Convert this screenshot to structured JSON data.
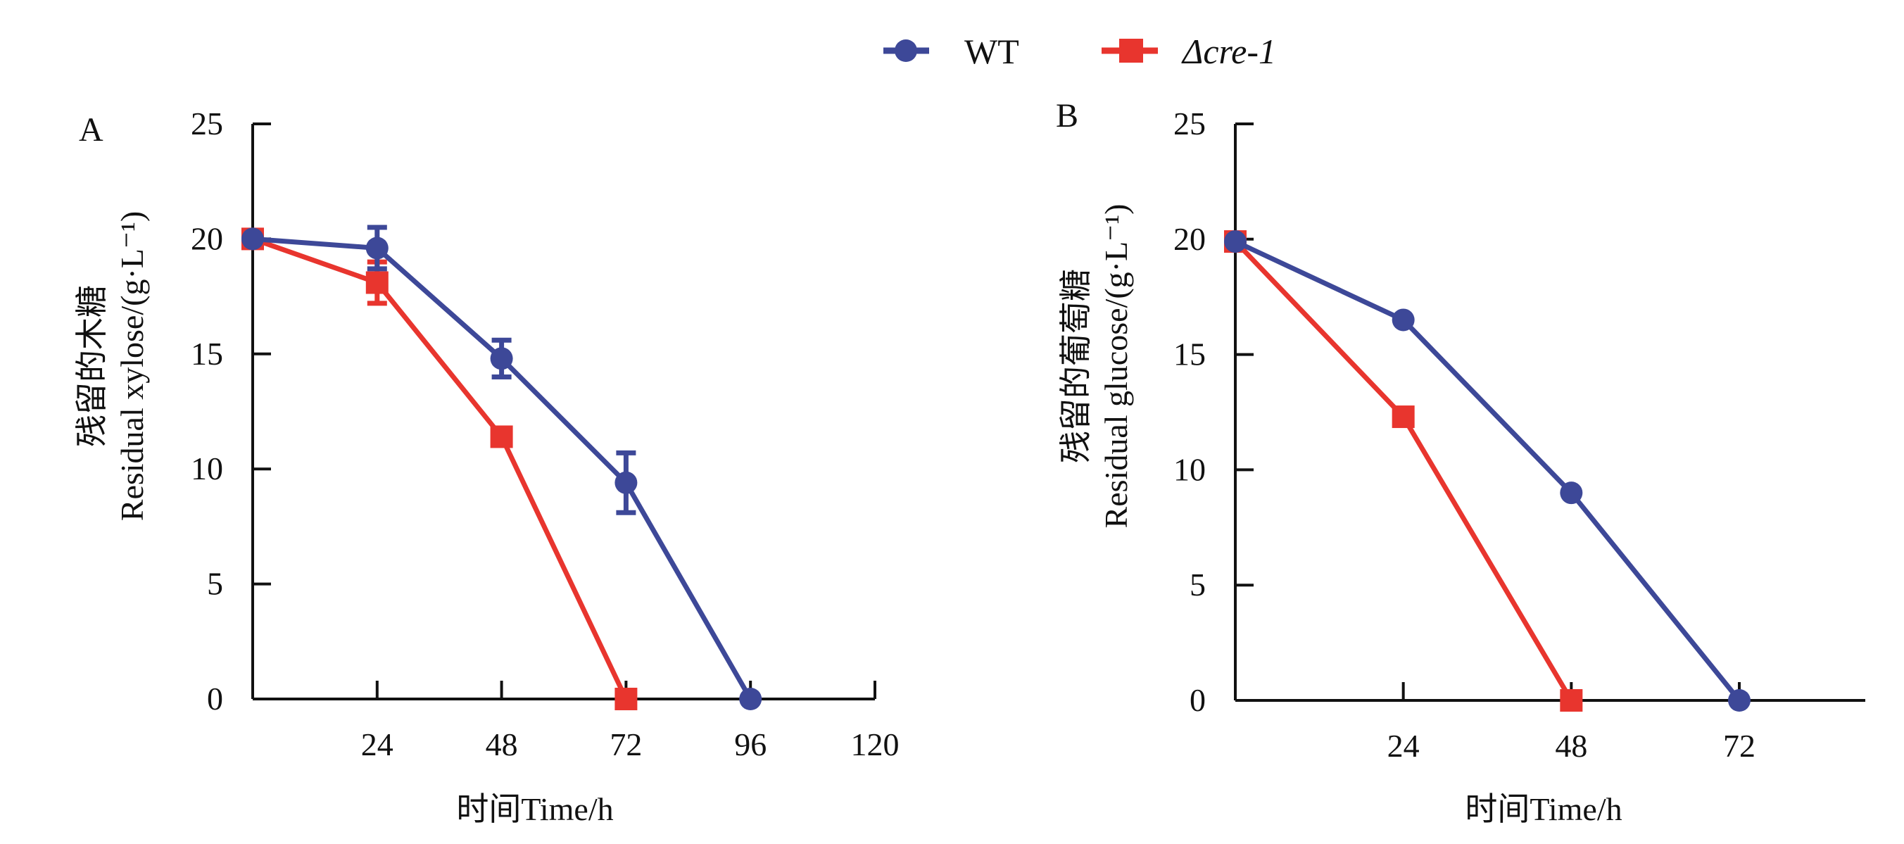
{
  "legend": {
    "items": [
      {
        "label": "WT",
        "marker": "circle",
        "color": "#3d4898"
      },
      {
        "label": "Δcre-1",
        "marker": "square",
        "color": "#e8352e"
      }
    ],
    "placement": "top-center"
  },
  "chart_data": [
    {
      "type": "line",
      "panel_label": "A",
      "ylabel_cn": "残留的木糖",
      "ylabel": "Residual xylose/(g·L⁻¹)",
      "xlabel": "时间Time/h",
      "xlim": [
        0,
        120
      ],
      "ylim": [
        0,
        25
      ],
      "xticks": [
        24,
        48,
        72,
        96,
        120
      ],
      "yticks": [
        0,
        5,
        10,
        15,
        20,
        25
      ],
      "grid": false,
      "series": [
        {
          "name": "WT",
          "x": [
            0,
            24,
            48,
            72,
            96
          ],
          "y": [
            20.0,
            19.6,
            14.8,
            9.4,
            0
          ],
          "err": [
            0.1,
            0.9,
            0.8,
            1.3,
            0
          ]
        },
        {
          "name": "Δcre-1",
          "x": [
            0,
            24,
            48,
            72
          ],
          "y": [
            20.0,
            18.1,
            11.4,
            0
          ],
          "err": [
            0.1,
            0.9,
            0,
            0
          ]
        }
      ]
    },
    {
      "type": "line",
      "panel_label": "B",
      "ylabel_cn": "残留的葡萄糖",
      "ylabel": "Residual glucose/(g·L⁻¹)",
      "xlabel": "时间Time/h",
      "xlim": [
        0,
        90
      ],
      "ylim": [
        0,
        25
      ],
      "xticks": [
        24,
        48,
        72
      ],
      "yticks": [
        0,
        5,
        10,
        15,
        20,
        25
      ],
      "grid": false,
      "series": [
        {
          "name": "WT",
          "x": [
            0,
            24,
            48,
            72
          ],
          "y": [
            19.9,
            16.5,
            9.0,
            0
          ],
          "err": [
            0,
            0,
            0,
            0
          ]
        },
        {
          "name": "Δcre-1",
          "x": [
            0,
            24,
            48
          ],
          "y": [
            19.9,
            12.3,
            0
          ],
          "err": [
            0,
            0,
            0
          ]
        }
      ]
    }
  ]
}
